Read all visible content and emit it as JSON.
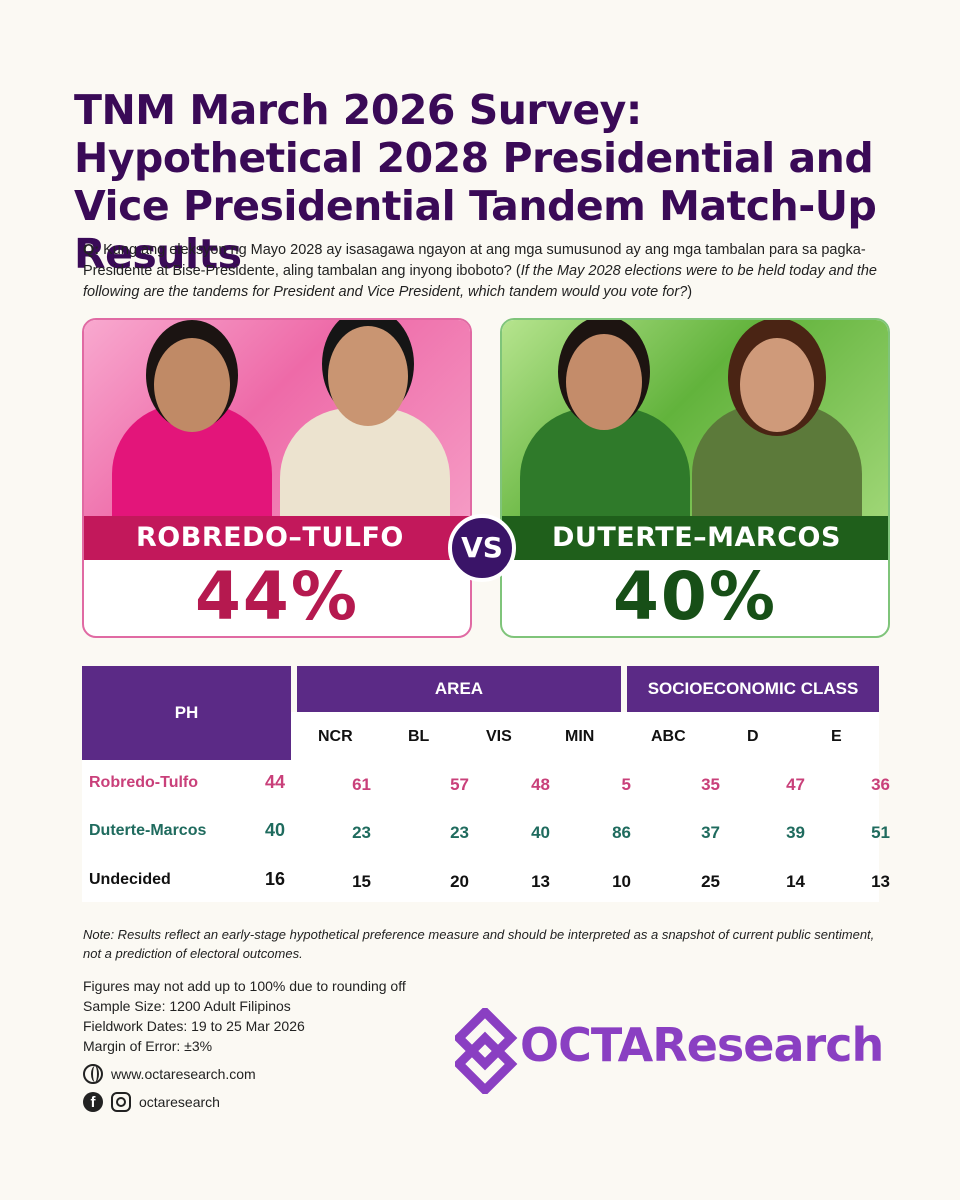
{
  "title": "TNM March 2026 Survey: Hypothetical 2028 Presidential and Vice Presidential Tandem Match-Up Results",
  "question": {
    "prefix": "Q:",
    "text": " Kung ang eleksyon ng Mayo 2028 ay isasagawa ngayon at ang mga sumusunod ay ang mga tambalan para sa pagka-Presidente at Bise-Presidente, aling tambalan ang inyong iboboto? (",
    "translation": "If the May 2028 elections were to be held today and the following are the tandems for President and Vice President, which tandem would you vote for?",
    "suffix": ")"
  },
  "cards": {
    "left": {
      "name": "ROBREDO–TULFO",
      "percent": "44%",
      "color": "#c2185b"
    },
    "right": {
      "name": "DUTERTE–MARCOS",
      "percent": "40%",
      "color": "#1f5f1b"
    },
    "vs": "VS"
  },
  "chart_data": {
    "type": "table",
    "headers": {
      "ph": "PH",
      "area": "AREA",
      "socio": "SOCIOECONOMIC CLASS"
    },
    "columns": [
      "NCR",
      "BL",
      "VIS",
      "MIN",
      "ABC",
      "D",
      "E"
    ],
    "rows": [
      {
        "label": "Robredo-Tulfo",
        "ph": "44",
        "values": [
          "61",
          "57",
          "48",
          "5",
          "35",
          "47",
          "36"
        ],
        "color": "#c9407a"
      },
      {
        "label": "Duterte-Marcos",
        "ph": "40",
        "values": [
          "23",
          "23",
          "40",
          "86",
          "37",
          "39",
          "51"
        ],
        "color": "#1f6b5e"
      },
      {
        "label": "Undecided",
        "ph": "16",
        "values": [
          "15",
          "20",
          "13",
          "10",
          "25",
          "14",
          "13"
        ],
        "color": "#111111"
      }
    ]
  },
  "note": "Note: Results reflect an early-stage hypothetical preference measure and should be interpreted as a snapshot of current public sentiment, not a prediction of electoral outcomes.",
  "info": [
    "Figures may not add up to 100% due to rounding off",
    "Sample Size: 1200 Adult Filipinos",
    "Fieldwork Dates: 19 to 25 Mar 2026",
    "Margin of Error: ±3%"
  ],
  "contact": {
    "website": "www.octaresearch.com",
    "social": "octaresearch",
    "web_icon": "globe-icon",
    "fb_icon": "facebook-icon",
    "ig_icon": "instagram-icon"
  },
  "logo": {
    "text": "OCTAResearch",
    "color": "#8a3fc2"
  }
}
